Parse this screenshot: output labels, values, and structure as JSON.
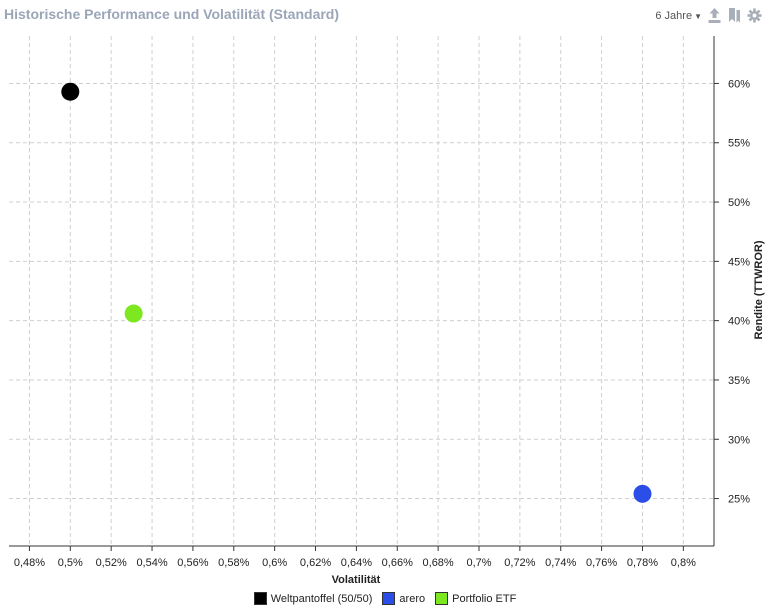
{
  "header": {
    "title": "Historische Performance und Volatilität (Standard)",
    "period_label": "6 Jahre",
    "icons": [
      "upload-icon",
      "bookmark-icon",
      "gear-icon"
    ]
  },
  "colors": {
    "title": "#9aa6b8",
    "icon": "#a9afb8",
    "grid": "#cfcfcf"
  },
  "chart_data": {
    "type": "scatter",
    "title": "Historische Performance und Volatilität (Standard)",
    "xlabel": "Volatilität",
    "ylabel": "Rendite (TTWROR)",
    "xlim": [
      0.47,
      0.815
    ],
    "ylim": [
      21,
      64
    ],
    "grid": true,
    "x_ticks": [
      0.48,
      0.5,
      0.52,
      0.54,
      0.56,
      0.58,
      0.6,
      0.62,
      0.64,
      0.66,
      0.68,
      0.7,
      0.72,
      0.74,
      0.76,
      0.78,
      0.8
    ],
    "x_tick_labels": [
      "0,48%",
      "0,5%",
      "0,52%",
      "0,54%",
      "0,56%",
      "0,58%",
      "0,6%",
      "0,62%",
      "0,64%",
      "0,66%",
      "0,68%",
      "0,7%",
      "0,72%",
      "0,74%",
      "0,76%",
      "0,78%",
      "0,8%"
    ],
    "y_ticks": [
      25,
      30,
      35,
      40,
      45,
      50,
      55,
      60
    ],
    "y_tick_labels": [
      "25%",
      "30%",
      "35%",
      "40%",
      "45%",
      "50%",
      "55%",
      "60%"
    ],
    "y_axis_side": "right",
    "legend_position": "bottom-center",
    "series": [
      {
        "name": "Weltpantoffel (50/50)",
        "color": "#000000",
        "points": [
          {
            "x": 0.5,
            "y": 59.3
          }
        ]
      },
      {
        "name": "arero",
        "color": "#2b4de8",
        "points": [
          {
            "x": 0.78,
            "y": 25.4
          }
        ]
      },
      {
        "name": "Portfolio ETF",
        "color": "#7de81f",
        "points": [
          {
            "x": 0.531,
            "y": 40.6
          }
        ]
      }
    ]
  }
}
